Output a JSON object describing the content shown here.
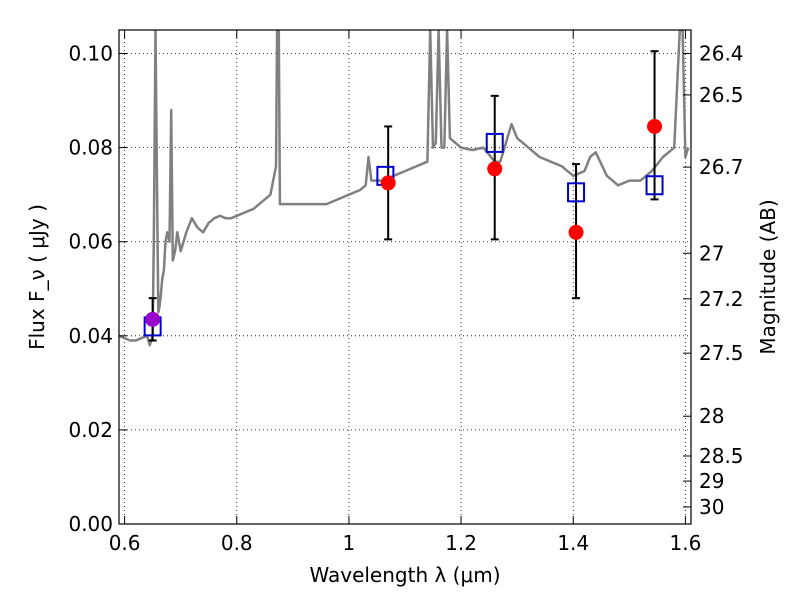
{
  "chart_data": {
    "type": "line",
    "title": "",
    "xlabel": "Wavelength  λ (μm)",
    "ylabel_left": "Flux  F_ν  ( μJy )",
    "ylabel_right": "Magnitude (AB)",
    "xlim": [
      0.59,
      1.61
    ],
    "ylim": [
      0.0,
      0.105
    ],
    "x_ticks": [
      0.6,
      0.8,
      1.0,
      1.2,
      1.4,
      1.6
    ],
    "x_tick_labels": [
      "0.6",
      "0.8",
      "1",
      "1.2",
      "1.4",
      "1.6"
    ],
    "y_ticks": [
      0.0,
      0.02,
      0.04,
      0.06,
      0.08,
      0.1
    ],
    "y_tick_labels": [
      "0.00",
      "0.02",
      "0.04",
      "0.06",
      "0.08",
      "0.10"
    ],
    "mag_ticks": [
      26.4,
      26.5,
      26.7,
      27,
      27.2,
      27.5,
      28,
      28.5,
      29,
      30
    ],
    "mag_tick_labels": [
      "26.4",
      "26.5",
      "26.7",
      "27",
      "27.2",
      "27.5",
      "28",
      "28.5",
      "29",
      "30"
    ],
    "grid": true,
    "colors": {
      "spectrum": "#808080",
      "observed": "#ff0000",
      "model": "#0000cc",
      "errorbar": "#000000"
    },
    "series": [
      {
        "kind": "spectrum",
        "x": [
          0.59,
          0.6,
          0.61,
          0.62,
          0.63,
          0.64,
          0.645,
          0.65,
          0.652,
          0.655,
          0.658,
          0.66,
          0.662,
          0.664,
          0.667,
          0.67,
          0.673,
          0.676,
          0.68,
          0.683,
          0.686,
          0.69,
          0.694,
          0.7,
          0.71,
          0.72,
          0.73,
          0.74,
          0.75,
          0.76,
          0.77,
          0.78,
          0.79,
          0.8,
          0.81,
          0.82,
          0.83,
          0.84,
          0.85,
          0.86,
          0.87,
          0.872,
          0.875,
          0.877,
          0.879,
          0.881,
          0.885,
          0.89,
          0.9,
          0.92,
          0.94,
          0.96,
          0.98,
          1.0,
          1.02,
          1.03,
          1.035,
          1.04,
          1.05,
          1.06,
          1.08,
          1.1,
          1.12,
          1.14,
          1.145,
          1.15,
          1.155,
          1.16,
          1.165,
          1.17,
          1.175,
          1.18,
          1.19,
          1.2,
          1.22,
          1.24,
          1.26,
          1.27,
          1.28,
          1.29,
          1.3,
          1.32,
          1.34,
          1.36,
          1.38,
          1.4,
          1.42,
          1.43,
          1.44,
          1.46,
          1.48,
          1.5,
          1.52,
          1.54,
          1.56,
          1.57,
          1.58,
          1.59,
          1.595,
          1.6,
          1.605
        ],
        "y": [
          0.04,
          0.0395,
          0.039,
          0.039,
          0.0395,
          0.04,
          0.038,
          0.04,
          0.06,
          0.105,
          0.07,
          0.045,
          0.046,
          0.048,
          0.052,
          0.054,
          0.06,
          0.062,
          0.06,
          0.088,
          0.056,
          0.058,
          0.062,
          0.058,
          0.062,
          0.065,
          0.063,
          0.062,
          0.064,
          0.065,
          0.0655,
          0.065,
          0.065,
          0.0655,
          0.066,
          0.0665,
          0.067,
          0.068,
          0.069,
          0.07,
          0.076,
          0.105,
          0.105,
          0.068,
          0.068,
          0.068,
          0.068,
          0.068,
          0.068,
          0.068,
          0.068,
          0.068,
          0.069,
          0.07,
          0.071,
          0.072,
          0.078,
          0.073,
          0.073,
          0.073,
          0.074,
          0.075,
          0.076,
          0.077,
          0.105,
          0.08,
          0.081,
          0.105,
          0.08,
          0.08,
          0.105,
          0.082,
          0.081,
          0.08,
          0.0795,
          0.08,
          0.077,
          0.077,
          0.081,
          0.085,
          0.082,
          0.08,
          0.078,
          0.077,
          0.076,
          0.074,
          0.075,
          0.078,
          0.079,
          0.074,
          0.072,
          0.073,
          0.073,
          0.075,
          0.078,
          0.079,
          0.08,
          0.105,
          0.105,
          0.078,
          0.08
        ]
      },
      {
        "kind": "observed",
        "x": [
          0.65,
          1.07,
          1.26,
          1.405,
          1.545
        ],
        "y": [
          0.0435,
          0.0725,
          0.0755,
          0.062,
          0.0845
        ],
        "yerr_low": [
          0.039,
          0.0605,
          0.0605,
          0.048,
          0.069
        ],
        "yerr_high": [
          0.048,
          0.0845,
          0.091,
          0.0765,
          0.1005
        ]
      },
      {
        "kind": "model",
        "x": [
          0.65,
          1.065,
          1.26,
          1.405,
          1.545
        ],
        "y": [
          0.042,
          0.074,
          0.081,
          0.0705,
          0.072
        ]
      }
    ]
  }
}
